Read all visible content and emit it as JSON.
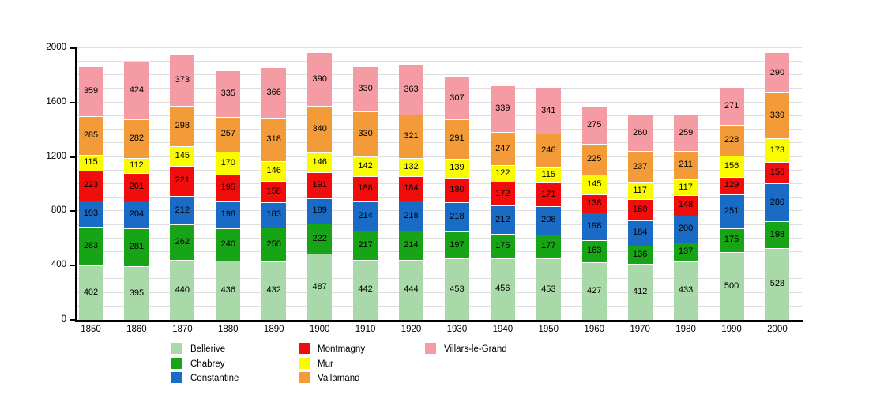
{
  "chart_data": {
    "type": "bar",
    "stacked": true,
    "title": "",
    "xlabel": "",
    "ylabel": "",
    "ylim": [
      0,
      2000
    ],
    "yticks": [
      "0",
      "400",
      "800",
      "1200",
      "1600",
      "2000"
    ],
    "grid_step": 100,
    "grid": "on",
    "legend_position": "bottom",
    "categories": [
      "1850",
      "1860",
      "1870",
      "1880",
      "1890",
      "1900",
      "1910",
      "1920",
      "1930",
      "1940",
      "1950",
      "1960",
      "1970",
      "1980",
      "1990",
      "2000"
    ],
    "series": [
      {
        "name": "Bellerive",
        "color": "#a9d9a9",
        "values": [
          402,
          395,
          440,
          436,
          432,
          487,
          442,
          444,
          453,
          456,
          453,
          427,
          412,
          433,
          500,
          528
        ]
      },
      {
        "name": "Chabrey",
        "color": "#17a517",
        "values": [
          283,
          281,
          262,
          240,
          250,
          222,
          217,
          214,
          197,
          175,
          177,
          163,
          136,
          137,
          175,
          198
        ]
      },
      {
        "name": "Constantine",
        "color": "#1a6bc6",
        "values": [
          193,
          204,
          212,
          198,
          183,
          189,
          214,
          218,
          218,
          212,
          208,
          198,
          184,
          200,
          251,
          280
        ]
      },
      {
        "name": "Montmagny",
        "color": "#f20d0d",
        "values": [
          223,
          201,
          221,
          195,
          158,
          191,
          188,
          184,
          180,
          172,
          171,
          138,
          160,
          148,
          129,
          156
        ]
      },
      {
        "name": "Mur",
        "color": "#fbfb00",
        "values": [
          115,
          112,
          145,
          170,
          146,
          146,
          142,
          132,
          139,
          122,
          115,
          145,
          117,
          117,
          156,
          173
        ]
      },
      {
        "name": "Vallamand",
        "color": "#f29b38",
        "values": [
          285,
          282,
          298,
          257,
          318,
          340,
          330,
          321,
          291,
          247,
          246,
          225,
          237,
          211,
          228,
          339
        ]
      },
      {
        "name": "Villars-le-Grand",
        "color": "#f49ba3",
        "values": [
          359,
          424,
          373,
          335,
          366,
          390,
          330,
          363,
          307,
          339,
          341,
          275,
          260,
          259,
          271,
          290
        ]
      }
    ],
    "legend_columns": [
      [
        "Bellerive",
        "Chabrey",
        "Constantine"
      ],
      [
        "Montmagny",
        "Mur",
        "Vallamand"
      ],
      [
        "Villars-le-Grand"
      ]
    ]
  }
}
